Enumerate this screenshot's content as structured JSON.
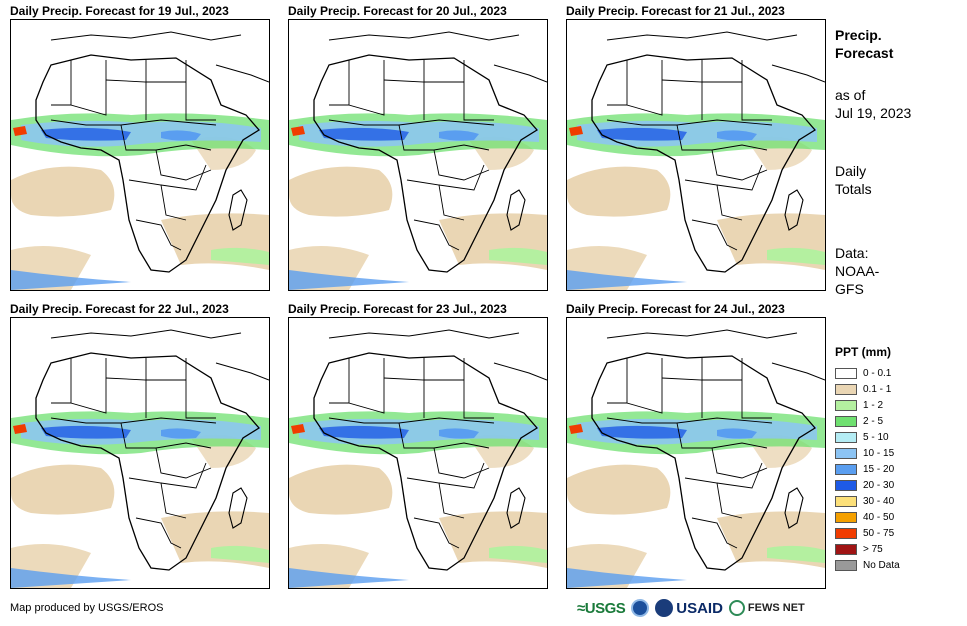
{
  "panels": [
    {
      "title": "Daily Precip. Forecast for 19 Jul., 2023"
    },
    {
      "title": "Daily Precip. Forecast for 20 Jul., 2023"
    },
    {
      "title": "Daily Precip. Forecast for 21 Jul., 2023"
    },
    {
      "title": "Daily Precip. Forecast for 22 Jul., 2023"
    },
    {
      "title": "Daily Precip. Forecast for 23 Jul., 2023"
    },
    {
      "title": "Daily Precip. Forecast for 24 Jul., 2023"
    }
  ],
  "side": {
    "title_line1": "Precip.",
    "title_line2": "Forecast",
    "asof_line1": "as of",
    "asof_line2": "Jul 19, 2023",
    "daily_line1": "Daily",
    "daily_line2": "Totals",
    "data_line1": "Data:",
    "data_line2": "NOAA-",
    "data_line3": "GFS"
  },
  "legend": {
    "title": "PPT (mm)",
    "items": [
      {
        "label": "0 - 0.1",
        "color": "#ffffff"
      },
      {
        "label": "0.1 - 1",
        "color": "#ead6b4"
      },
      {
        "label": "1 - 2",
        "color": "#b4f0a0"
      },
      {
        "label": "2 - 5",
        "color": "#6fe070"
      },
      {
        "label": "5 - 10",
        "color": "#b4ecf4"
      },
      {
        "label": "10 - 15",
        "color": "#8cc4f4"
      },
      {
        "label": "15 - 20",
        "color": "#5a9ef0"
      },
      {
        "label": "20 - 30",
        "color": "#1e5ae6"
      },
      {
        "label": "30 - 40",
        "color": "#fce07a"
      },
      {
        "label": "40 - 50",
        "color": "#f4a000"
      },
      {
        "label": "50 - 75",
        "color": "#f03c00"
      },
      {
        "label": "> 75",
        "color": "#a01414"
      },
      {
        "label": "No Data",
        "color": "#999999"
      }
    ]
  },
  "footer": {
    "credit": "Map produced by USGS/EROS",
    "logo_usgs": "≈USGS",
    "logo_usaid": "USAID",
    "logo_fews": "FEWS NET"
  }
}
